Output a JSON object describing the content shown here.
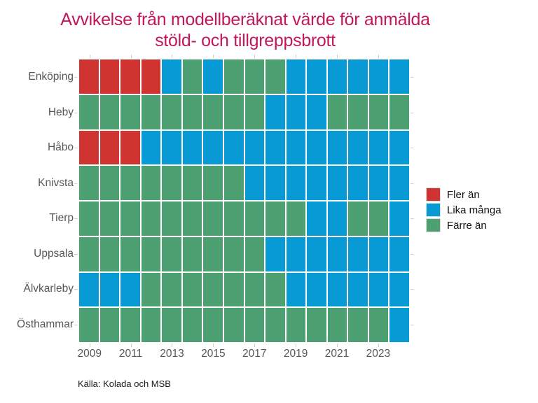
{
  "title": {
    "line1": "Avvikelse från modellberäknat värde för anmälda",
    "line2": "stöld- och tillgreppsbrott"
  },
  "source": "Källa: Kolada och MSB",
  "style": {
    "title_color": "#c2185b",
    "axis_text_color": "#575757",
    "fler_color": "#cf3430",
    "lika_color": "#089ad4",
    "farre_color": "#4da071"
  },
  "legend": {
    "items": [
      {
        "label": "Fler än",
        "color": "#cf3430"
      },
      {
        "label": "Lika många",
        "color": "#089ad4"
      },
      {
        "label": "Färre än",
        "color": "#4da071"
      }
    ]
  },
  "chart_data": {
    "type": "heatmap",
    "title": "Avvikelse från modellberäknat värde för anmälda stöld- och tillgreppsbrott",
    "x": [
      2009,
      2010,
      2011,
      2012,
      2013,
      2014,
      2015,
      2016,
      2017,
      2018,
      2019,
      2020,
      2021,
      2022,
      2023,
      2024
    ],
    "x_tick_labels": [
      "2009",
      "2011",
      "2013",
      "2015",
      "2017",
      "2019",
      "2021",
      "2023"
    ],
    "y_categories": [
      "Enköping",
      "Heby",
      "Håbo",
      "Knivsta",
      "Tierp",
      "Uppsala",
      "Älvkarleby",
      "Östhammar"
    ],
    "categories": [
      "Fler än",
      "Lika många",
      "Färre än"
    ],
    "color_map": {
      "Fler än": "#cf3430",
      "Lika många": "#089ad4",
      "Färre än": "#4da071"
    },
    "legend_position": "right",
    "rows": [
      {
        "name": "Enköping",
        "values": [
          "Fler än",
          "Fler än",
          "Fler än",
          "Fler än",
          "Lika många",
          "Färre än",
          "Lika många",
          "Färre än",
          "Färre än",
          "Färre än",
          "Lika många",
          "Lika många",
          "Lika många",
          "Lika många",
          "Lika många",
          "Lika många"
        ]
      },
      {
        "name": "Heby",
        "values": [
          "Färre än",
          "Färre än",
          "Färre än",
          "Färre än",
          "Färre än",
          "Färre än",
          "Färre än",
          "Färre än",
          "Färre än",
          "Lika många",
          "Lika många",
          "Lika många",
          "Färre än",
          "Färre än",
          "Färre än",
          "Färre än"
        ]
      },
      {
        "name": "Håbo",
        "values": [
          "Fler än",
          "Fler än",
          "Fler än",
          "Lika många",
          "Lika många",
          "Lika många",
          "Lika många",
          "Lika många",
          "Lika många",
          "Lika många",
          "Lika många",
          "Lika många",
          "Lika många",
          "Lika många",
          "Lika många",
          "Lika många"
        ]
      },
      {
        "name": "Knivsta",
        "values": [
          "Färre än",
          "Färre än",
          "Färre än",
          "Färre än",
          "Färre än",
          "Färre än",
          "Färre än",
          "Färre än",
          "Lika många",
          "Lika många",
          "Lika många",
          "Lika många",
          "Lika många",
          "Lika många",
          "Lika många",
          "Lika många"
        ]
      },
      {
        "name": "Tierp",
        "values": [
          "Färre än",
          "Färre än",
          "Färre än",
          "Färre än",
          "Färre än",
          "Färre än",
          "Färre än",
          "Färre än",
          "Färre än",
          "Färre än",
          "Färre än",
          "Lika många",
          "Lika många",
          "Färre än",
          "Färre än",
          "Lika många"
        ]
      },
      {
        "name": "Uppsala",
        "values": [
          "Färre än",
          "Färre än",
          "Färre än",
          "Färre än",
          "Färre än",
          "Färre än",
          "Färre än",
          "Färre än",
          "Färre än",
          "Lika många",
          "Lika många",
          "Lika många",
          "Lika många",
          "Lika många",
          "Lika många",
          "Lika många"
        ]
      },
      {
        "name": "Älvkarleby",
        "values": [
          "Lika många",
          "Lika många",
          "Lika många",
          "Färre än",
          "Färre än",
          "Färre än",
          "Färre än",
          "Färre än",
          "Färre än",
          "Färre än",
          "Lika många",
          "Lika många",
          "Lika många",
          "Lika många",
          "Lika många",
          "Lika många"
        ]
      },
      {
        "name": "Östhammar",
        "values": [
          "Färre än",
          "Färre än",
          "Färre än",
          "Färre än",
          "Färre än",
          "Färre än",
          "Färre än",
          "Färre än",
          "Färre än",
          "Färre än",
          "Färre än",
          "Färre än",
          "Färre än",
          "Färre än",
          "Färre än",
          "Lika många"
        ]
      }
    ],
    "source": "Källa: Kolada och MSB"
  }
}
